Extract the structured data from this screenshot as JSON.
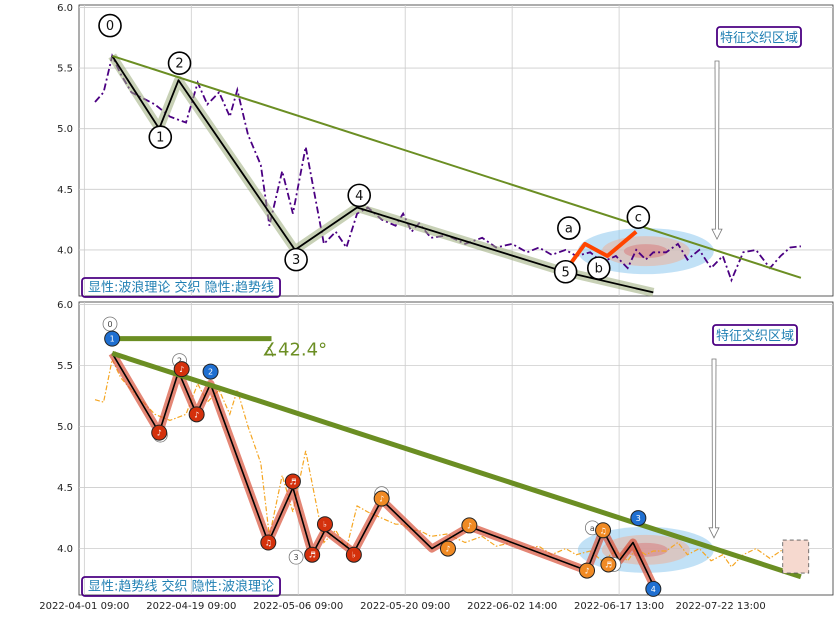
{
  "chart_data": [
    {
      "type": "line",
      "panel": "top",
      "ylim": [
        3.62,
        6.02
      ],
      "yticks": [
        4.0,
        4.5,
        5.0,
        5.5,
        6.0
      ],
      "ytick_labels": [
        "4.0",
        "4.5",
        "5.0",
        "5.5",
        "6.0"
      ],
      "grid": true,
      "annotation_box": "特征交织区域",
      "legend_text": "显性:波浪理论 交织 隐性:趋势线",
      "series": [
        {
          "key": "price",
          "style": "dash-dot",
          "color": "#4b0082",
          "x": [
            0,
            0.8,
            1.6,
            2.4,
            3.4,
            4.5,
            5.6,
            7.0,
            8.5,
            9.6,
            10.5,
            11.6,
            12.6,
            13.3,
            14.3,
            15.5,
            16.3,
            17.5,
            18.5,
            19.7,
            21.4,
            22.5,
            23.5,
            24.5,
            25.5,
            26.8,
            28.1,
            28.8,
            29.6,
            30.3,
            31.4,
            32.9,
            34.6,
            36.2,
            37.5,
            39.0,
            40.4,
            41.5,
            42.7,
            44.0,
            45.0,
            46.3,
            47.4,
            48.7,
            49.8,
            50.6,
            51.5,
            52.2,
            53.4,
            54.5,
            55.4,
            56.5,
            57.6,
            58.7,
            59.5,
            60.6,
            61.8,
            63.1,
            64.1,
            65.0,
            66.0
          ],
          "y": [
            5.22,
            5.3,
            5.6,
            5.45,
            5.3,
            5.25,
            5.2,
            5.1,
            5.05,
            5.38,
            5.2,
            5.3,
            5.1,
            5.32,
            4.95,
            4.7,
            4.2,
            4.65,
            4.3,
            4.85,
            4.05,
            4.15,
            4.02,
            4.3,
            4.35,
            4.25,
            4.2,
            4.3,
            4.15,
            4.22,
            4.1,
            4.12,
            4.05,
            4.1,
            4.02,
            4.05,
            3.98,
            4.02,
            3.96,
            4.0,
            3.95,
            3.98,
            3.9,
            3.95,
            3.85,
            4.0,
            3.92,
            3.98,
            3.98,
            4.05,
            3.92,
            4.0,
            3.85,
            3.95,
            3.75,
            3.98,
            4.0,
            3.85,
            3.95,
            4.02,
            4.03
          ]
        },
        {
          "key": "wave_path",
          "style": "solid",
          "color": "#000000",
          "x": [
            1.6,
            6.0,
            7.8,
            18.7,
            24.5,
            43.9,
            52.2
          ],
          "y": [
            5.6,
            5.0,
            5.4,
            4.0,
            4.35,
            3.82,
            3.65
          ]
        },
        {
          "key": "abc_path",
          "style": "solid",
          "color": "#ff4500",
          "x": [
            43.9,
            45.8,
            47.9,
            50.6
          ],
          "y": [
            3.82,
            4.05,
            3.95,
            4.15
          ]
        },
        {
          "key": "trend",
          "style": "solid",
          "color": "#6b8e23",
          "x": [
            1.6,
            66.0
          ],
          "y": [
            5.6,
            3.77
          ]
        }
      ],
      "wave_labels": [
        {
          "label": "0",
          "x": 1.4,
          "y": 5.85
        },
        {
          "label": "1",
          "x": 6.1,
          "y": 4.93
        },
        {
          "label": "2",
          "x": 7.9,
          "y": 5.54
        },
        {
          "label": "3",
          "x": 18.8,
          "y": 3.92
        },
        {
          "label": "4",
          "x": 24.7,
          "y": 4.45
        },
        {
          "label": "5",
          "x": 44.0,
          "y": 3.82
        },
        {
          "label": "a",
          "x": 44.3,
          "y": 4.18
        },
        {
          "label": "b",
          "x": 47.1,
          "y": 3.85
        },
        {
          "label": "c",
          "x": 50.8,
          "y": 4.27
        }
      ]
    },
    {
      "type": "line",
      "panel": "bottom",
      "ylim": [
        3.62,
        6.02
      ],
      "yticks": [
        4.0,
        4.5,
        5.0,
        5.5,
        6.0
      ],
      "ytick_labels": [
        "4.0",
        "4.5",
        "5.0",
        "5.5",
        "6.0"
      ],
      "grid": true,
      "annotation_box": "特征交织区域",
      "legend_text": "显性:趋势线 交织 隐性:波浪理论",
      "angle_text": "∡42.4°",
      "series": [
        {
          "key": "price",
          "style": "dash-dot",
          "color": "#f5a623",
          "x": [
            0,
            0.8,
            1.6,
            2.4,
            3.4,
            4.5,
            5.6,
            7.0,
            8.5,
            9.6,
            10.5,
            11.6,
            12.6,
            13.3,
            14.3,
            15.5,
            16.3,
            17.5,
            18.5,
            19.7,
            21.4,
            22.5,
            23.5,
            24.5,
            25.5,
            26.8,
            28.1,
            28.8,
            29.6,
            30.3,
            31.4,
            32.9,
            34.6,
            36.2,
            37.5,
            39.0,
            40.4,
            41.5,
            42.7,
            44.0,
            45.0,
            46.3,
            47.4,
            48.7,
            49.8,
            50.6,
            51.5,
            52.2,
            53.4,
            54.5,
            55.4,
            56.5,
            57.6,
            58.7,
            59.5,
            60.6,
            61.8,
            63.1,
            64.1,
            65.0,
            66.0
          ],
          "y": [
            5.22,
            5.2,
            5.55,
            5.4,
            5.3,
            5.2,
            5.1,
            5.05,
            5.1,
            5.35,
            5.2,
            5.3,
            5.1,
            5.3,
            5.0,
            4.7,
            4.1,
            4.6,
            4.3,
            4.8,
            4.05,
            4.15,
            4.0,
            4.35,
            4.3,
            4.25,
            4.2,
            4.2,
            4.15,
            4.15,
            4.1,
            4.12,
            4.05,
            4.1,
            4.02,
            4.05,
            4.0,
            4.02,
            3.95,
            4.0,
            3.95,
            3.98,
            3.9,
            3.98,
            3.9,
            4.0,
            3.95,
            3.98,
            3.98,
            4.05,
            3.95,
            4.0,
            3.9,
            3.95,
            3.85,
            3.95,
            4.0,
            3.92,
            3.98,
            4.02,
            4.0
          ]
        },
        {
          "key": "wave_path",
          "style": "solid",
          "color": "#000000",
          "x": [
            1.6,
            6.0,
            7.8,
            9.5,
            10.8,
            16.2,
            18.5,
            20.3,
            21.5,
            24.2,
            26.8,
            31.5,
            35.0,
            46.0,
            47.5,
            49.0,
            50.3,
            52.2
          ],
          "y": [
            5.6,
            4.95,
            5.45,
            5.1,
            5.35,
            4.05,
            4.5,
            3.95,
            4.15,
            3.97,
            4.4,
            4.0,
            4.18,
            3.82,
            4.15,
            3.9,
            4.05,
            3.7
          ]
        },
        {
          "key": "trend",
          "style": "solid",
          "color": "#6b8e23",
          "x": [
            1.6,
            66.0
          ],
          "y": [
            5.6,
            3.77
          ]
        },
        {
          "key": "horizontal_ref",
          "style": "solid",
          "color": "#6b8e23",
          "x": [
            1.6,
            16.5
          ],
          "y": [
            5.72,
            5.72
          ]
        }
      ],
      "markers": [
        {
          "x": 1.6,
          "y": 5.72,
          "color": "#1f6fd1",
          "glyph": "1"
        },
        {
          "x": 10.8,
          "y": 5.45,
          "color": "#1f6fd1",
          "glyph": "2"
        },
        {
          "x": 50.8,
          "y": 4.25,
          "color": "#1f6fd1",
          "glyph": "3"
        },
        {
          "x": 52.2,
          "y": 3.67,
          "color": "#1f6fd1",
          "glyph": "4"
        },
        {
          "x": 6.0,
          "y": 4.95,
          "color": "#d4310c",
          "glyph": "♪"
        },
        {
          "x": 8.1,
          "y": 5.47,
          "color": "#d4310c",
          "glyph": "♪"
        },
        {
          "x": 9.5,
          "y": 5.1,
          "color": "#d4310c",
          "glyph": "♪"
        },
        {
          "x": 16.2,
          "y": 4.05,
          "color": "#d4310c",
          "glyph": "♫"
        },
        {
          "x": 18.5,
          "y": 4.55,
          "color": "#d4310c",
          "glyph": "♬"
        },
        {
          "x": 20.3,
          "y": 3.95,
          "color": "#d4310c",
          "glyph": "♬"
        },
        {
          "x": 21.5,
          "y": 4.2,
          "color": "#d4310c",
          "glyph": "♭"
        },
        {
          "x": 24.2,
          "y": 3.95,
          "color": "#d4310c",
          "glyph": "♭"
        },
        {
          "x": 26.8,
          "y": 4.41,
          "color": "#f08a24",
          "glyph": "♪"
        },
        {
          "x": 33.0,
          "y": 4.0,
          "color": "#f08a24",
          "glyph": "♪"
        },
        {
          "x": 35.0,
          "y": 4.19,
          "color": "#f08a24",
          "glyph": "♪"
        },
        {
          "x": 46.0,
          "y": 3.82,
          "color": "#f08a24",
          "glyph": "♪"
        },
        {
          "x": 47.5,
          "y": 4.15,
          "color": "#f08a24",
          "glyph": "♫"
        },
        {
          "x": 48.0,
          "y": 3.87,
          "color": "#f08a24",
          "glyph": "♬"
        }
      ],
      "ghost_labels": [
        {
          "label": "0",
          "x": 1.4,
          "y": 5.84
        },
        {
          "label": "1",
          "x": 6.1,
          "y": 4.93
        },
        {
          "label": "2",
          "x": 7.9,
          "y": 5.54
        },
        {
          "label": "3",
          "x": 18.8,
          "y": 3.93
        },
        {
          "label": "4",
          "x": 26.8,
          "y": 4.45
        },
        {
          "label": "5",
          "x": 46.0,
          "y": 3.82
        },
        {
          "label": "a",
          "x": 46.5,
          "y": 4.17
        },
        {
          "label": "b",
          "x": 48.5,
          "y": 3.87
        }
      ]
    }
  ],
  "x_axis": {
    "xlim": [
      -1.5,
      69.0
    ],
    "ticks": [
      -1.0,
      9.0,
      19.0,
      29.0,
      39.0,
      49.0
    ],
    "labels": [
      "2022-04-01 09:00",
      "2022-04-19 09:00",
      "2022-05-06 09:00",
      "2022-05-20 09:00",
      "2022-06-02 14:00",
      "2022-06-17 13:00",
      "2022-07-22 13:00"
    ],
    "label_positions": [
      -1.0,
      9.0,
      19.0,
      29.0,
      39.0,
      49.0,
      58.5
    ]
  },
  "colors": {
    "grid": "#cccccc",
    "axis": "#333333",
    "tag_border": "#4b0082",
    "tag_text": "#1f7fb3",
    "trend": "#6b8e23",
    "wave_shadow": "#9aac7a",
    "wave_shadow_bottom": "#d9533a",
    "ellipse_outer": "#8ec8ee",
    "ellipse_mid": "#e8b6a3",
    "ellipse_inner": "#d98f8f"
  }
}
